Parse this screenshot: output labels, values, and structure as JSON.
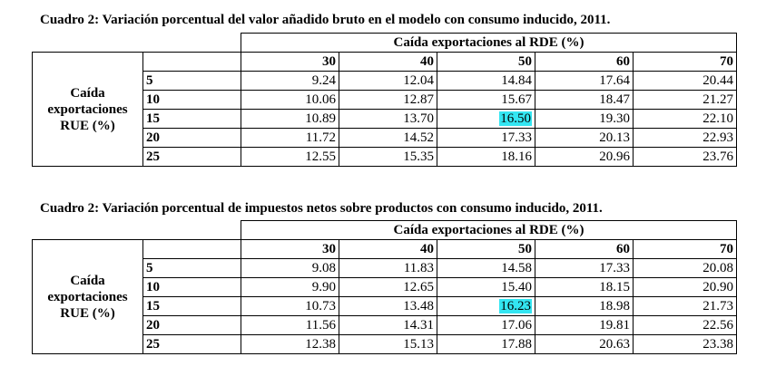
{
  "tables": [
    {
      "caption": "Cuadro 2: Variación porcentual del valor añadido bruto en el modelo con consumo inducido, 2011.",
      "header": "Caída exportaciones al RDE (%)",
      "side_label": [
        "Caída",
        "exportaciones",
        "RUE (%)"
      ],
      "columns": [
        "30",
        "40",
        "50",
        "60",
        "70"
      ],
      "rows": [
        {
          "label": "5",
          "values": [
            "9.24",
            "12.04",
            "14.84",
            "17.64",
            "20.44"
          ]
        },
        {
          "label": "10",
          "values": [
            "10.06",
            "12.87",
            "15.67",
            "18.47",
            "21.27"
          ]
        },
        {
          "label": "15",
          "values": [
            "10.89",
            "13.70",
            "16.50",
            "19.30",
            "22.10"
          ]
        },
        {
          "label": "20",
          "values": [
            "11.72",
            "14.52",
            "17.33",
            "20.13",
            "22.93"
          ]
        },
        {
          "label": "25",
          "values": [
            "12.55",
            "15.35",
            "18.16",
            "20.96",
            "23.76"
          ]
        }
      ],
      "highlight": {
        "row": 2,
        "col": 2
      }
    },
    {
      "caption": "Cuadro 2: Variación porcentual de impuestos netos sobre productos con consumo inducido,  2011.",
      "header": "Caída exportaciones al RDE (%)",
      "side_label": [
        "Caída",
        "exportaciones",
        "RUE (%)"
      ],
      "columns": [
        "30",
        "40",
        "50",
        "60",
        "70"
      ],
      "rows": [
        {
          "label": "5",
          "values": [
            "9.08",
            "11.83",
            "14.58",
            "17.33",
            "20.08"
          ]
        },
        {
          "label": "10",
          "values": [
            "9.90",
            "12.65",
            "15.40",
            "18.15",
            "20.90"
          ]
        },
        {
          "label": "15",
          "values": [
            "10.73",
            "13.48",
            "16.23",
            "18.98",
            "21.73"
          ]
        },
        {
          "label": "20",
          "values": [
            "11.56",
            "14.31",
            "17.06",
            "19.81",
            "22.56"
          ]
        },
        {
          "label": "25",
          "values": [
            "12.38",
            "15.13",
            "17.88",
            "20.63",
            "23.38"
          ]
        }
      ],
      "highlight": {
        "row": 2,
        "col": 2
      }
    }
  ],
  "colors": {
    "highlight": "#33e6f2"
  }
}
